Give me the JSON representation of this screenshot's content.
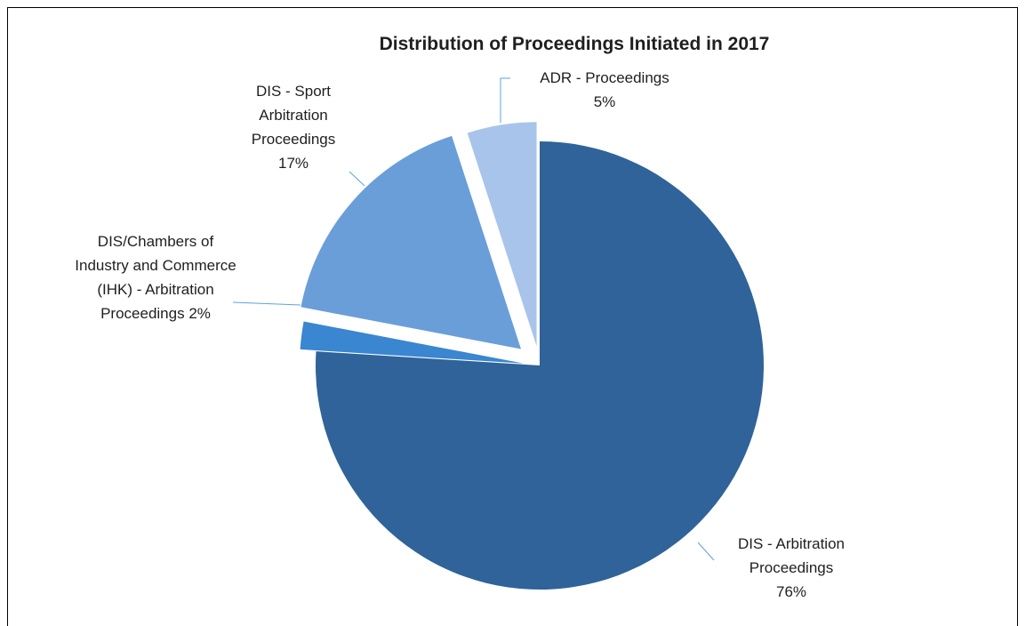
{
  "chart_data": {
    "type": "pie",
    "title": "Distribution of Proceedings Initiated in 2017",
    "categories": [
      "DIS - Arbitration Proceedings",
      "DIS/Chambers of Industry and Commerce (IHK) - Arbitration Proceedings",
      "DIS - Sport Arbitration Proceedings",
      "ADR - Proceedings"
    ],
    "values": [
      76,
      2,
      17,
      5
    ],
    "value_labels": [
      "76%",
      "2%",
      "17%",
      "5%"
    ],
    "colors": [
      "#2f6399",
      "#3a86d0",
      "#6a9ed8",
      "#a8c4ea"
    ]
  }
}
